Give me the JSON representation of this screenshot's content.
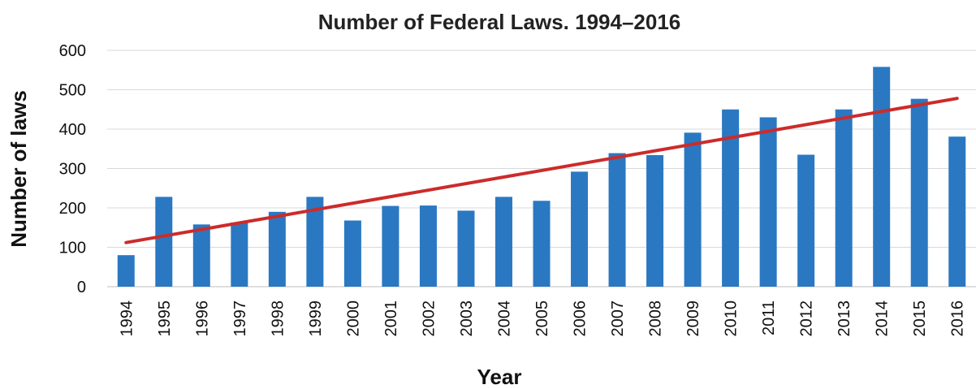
{
  "chart_data": {
    "type": "bar",
    "title": "Number of Federal Laws. 1994–2016",
    "xlabel": "Year",
    "ylabel": "Number of laws",
    "categories": [
      "1994",
      "1995",
      "1996",
      "1997",
      "1998",
      "1999",
      "2000",
      "2001",
      "2002",
      "2003",
      "2004",
      "2005",
      "2006",
      "2007",
      "2008",
      "2009",
      "2010",
      "2011",
      "2012",
      "2013",
      "2014",
      "2015",
      "2016"
    ],
    "values": [
      80,
      228,
      158,
      163,
      190,
      228,
      168,
      205,
      206,
      193,
      228,
      218,
      292,
      339,
      334,
      391,
      450,
      430,
      335,
      450,
      558,
      477,
      381
    ],
    "ylim": [
      0,
      600
    ],
    "yticks": [
      0,
      100,
      200,
      300,
      400,
      500,
      600
    ],
    "grid": true,
    "legend": "none",
    "trendline": {
      "type": "linear",
      "start": [
        1994,
        112
      ],
      "end": [
        2016,
        478
      ]
    },
    "colors": {
      "bar": "#2a78c2",
      "trend": "#cc2b2b",
      "grid": "#d9d9d9"
    }
  }
}
